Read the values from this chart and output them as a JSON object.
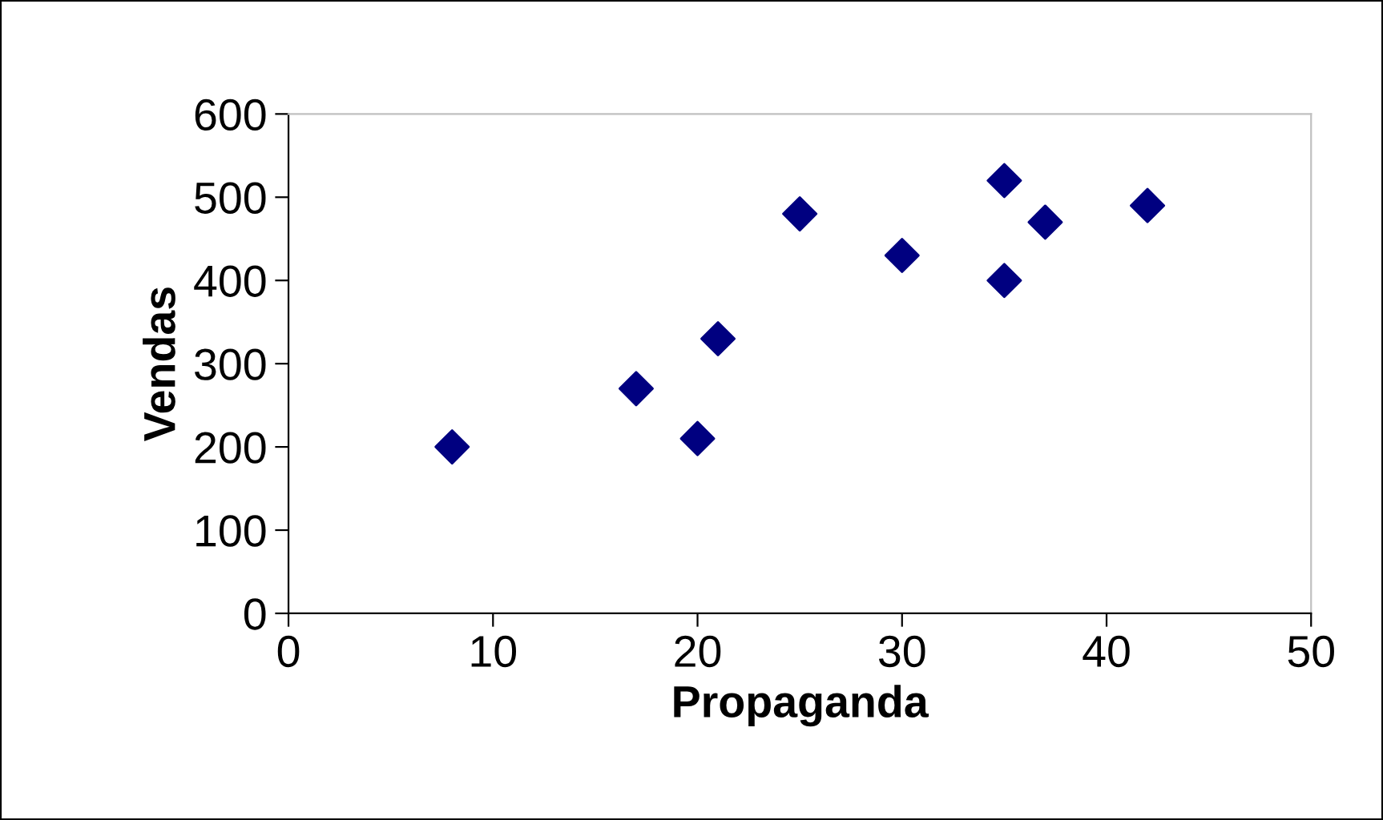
{
  "chart_data": {
    "type": "scatter",
    "xlabel": "Propaganda",
    "ylabel": "Vendas",
    "x": [
      8,
      17,
      20,
      21,
      25,
      30,
      35,
      35,
      37,
      42
    ],
    "values": [
      200,
      270,
      210,
      330,
      480,
      430,
      520,
      400,
      470,
      490
    ],
    "color": "#000080",
    "marker": "diamond",
    "xlim": [
      0,
      50
    ],
    "xticks": [
      0,
      10,
      20,
      30,
      40,
      50
    ],
    "ylim": [
      0,
      600
    ],
    "yticks": [
      0,
      100,
      200,
      300,
      400,
      500,
      600
    ],
    "grid": false,
    "legend": false
  }
}
